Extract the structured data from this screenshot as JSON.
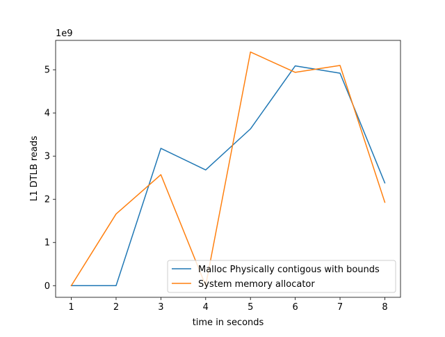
{
  "chart_data": {
    "type": "line",
    "title": "",
    "xlabel": "time in seconds",
    "ylabel": "L1 DTLB reads",
    "y_scale_label": "1e9",
    "x": [
      1,
      2,
      3,
      4,
      5,
      6,
      7,
      8
    ],
    "xlim": [
      0.65,
      8.35
    ],
    "ylim": [
      -0.27,
      5.68
    ],
    "xticks": [
      1,
      2,
      3,
      4,
      5,
      6,
      7,
      8
    ],
    "yticks": [
      0,
      1,
      2,
      3,
      4,
      5
    ],
    "grid": false,
    "legend_position": "lower-right",
    "series": [
      {
        "name": "Malloc Physically contigous with bounds",
        "color": "#1f77b4",
        "values": [
          0,
          0,
          3.18,
          2.68,
          3.63,
          5.09,
          4.92,
          2.38
        ]
      },
      {
        "name": "System memory allocator",
        "color": "#ff7f0e",
        "values": [
          0,
          1.66,
          2.57,
          0,
          5.41,
          4.94,
          5.1,
          1.93
        ]
      }
    ]
  }
}
